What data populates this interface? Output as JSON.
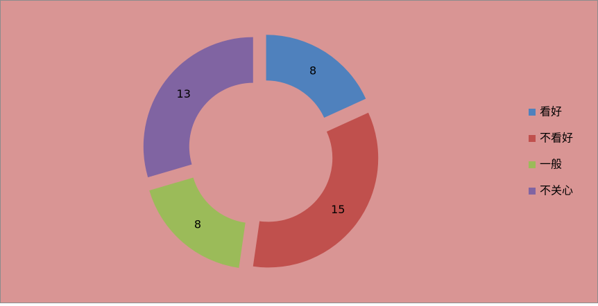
{
  "chart_data": {
    "type": "doughnut",
    "categories": [
      "看好",
      "不看好",
      "一般",
      "不关心"
    ],
    "values": [
      8,
      15,
      8,
      13
    ],
    "colors": [
      "#4f81bd",
      "#c0504d",
      "#9bbb59",
      "#8064a2"
    ],
    "legend": "right"
  }
}
